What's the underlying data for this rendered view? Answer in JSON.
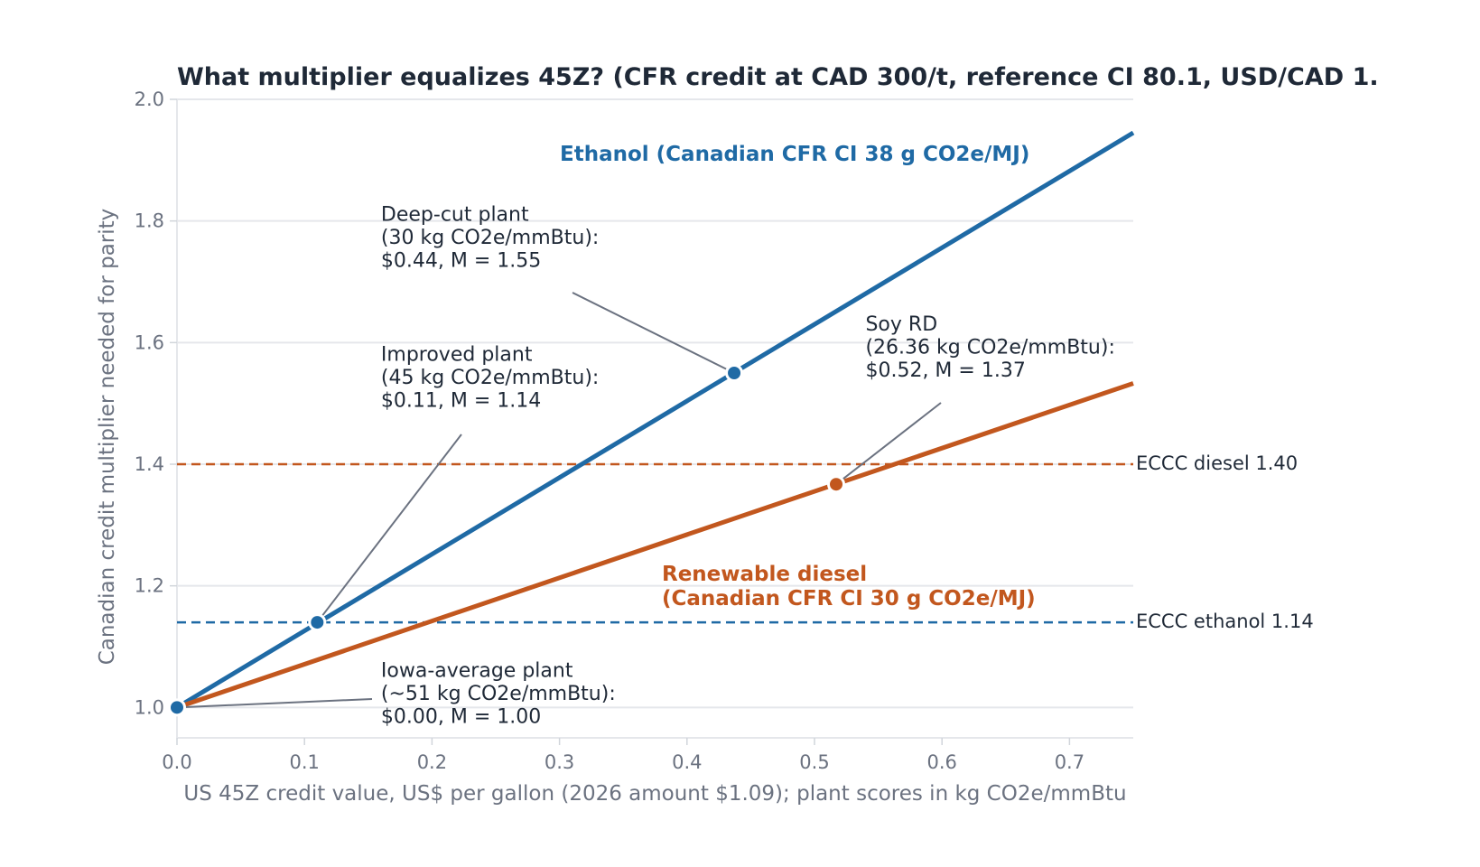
{
  "chart_data": {
    "type": "line",
    "title": "What multiplier equalizes 45Z? (CFR credit at CAD 300/t, reference CI 80.1, USD/CAD 1.",
    "xlabel": "US 45Z credit value, US$ per gallon (2026 amount $1.09); plant scores in kg CO2e/mmBtu",
    "ylabel": "Canadian credit multiplier needed for parity",
    "xlim": [
      0,
      0.75
    ],
    "ylim": [
      0.95,
      2.0
    ],
    "x_ticks": [
      "0.0",
      "0.1",
      "0.2",
      "0.3",
      "0.4",
      "0.5",
      "0.6",
      "0.7"
    ],
    "y_ticks": [
      "1.0",
      "1.2",
      "1.4",
      "1.6",
      "1.8",
      "2.0"
    ],
    "grid": "horizontal",
    "series": [
      {
        "name": "Ethanol (Canadian CFR CI 38 g CO2e/MJ)",
        "color": "#1f6aa5",
        "x": [
          0,
          0.75
        ],
        "y": [
          1.0,
          1.945
        ]
      },
      {
        "name": "Renewable diesel\n(Canadian CFR CI 30 g CO2e/MJ)",
        "color": "#c2571e",
        "x": [
          0,
          0.75
        ],
        "y": [
          1.0,
          1.533
        ]
      }
    ],
    "reference_lines": [
      {
        "label": "ECCC diesel 1.40",
        "y": 1.4,
        "color": "#c2571e"
      },
      {
        "label": "ECCC ethanol 1.14",
        "y": 1.14,
        "color": "#1f6aa5"
      }
    ],
    "points": [
      {
        "series": 0,
        "x": 0.0,
        "y": 1.0,
        "color": "#1f6aa5",
        "label": [
          "Iowa-average plant",
          "(~51 kg CO2e/mmBtu):",
          "$0.00, M = 1.00"
        ],
        "label_at": [
          0.16,
          1.05
        ]
      },
      {
        "series": 0,
        "x": 0.11,
        "y": 1.14,
        "color": "#1f6aa5",
        "label": [
          "Improved plant",
          "(45 kg CO2e/mmBtu):",
          "$0.11, M = 1.14"
        ],
        "label_at": [
          0.16,
          1.57
        ]
      },
      {
        "series": 0,
        "x": 0.437,
        "y": 1.55,
        "color": "#1f6aa5",
        "label": [
          "Deep-cut plant",
          "(30 kg CO2e/mmBtu):",
          "$0.44, M = 1.55"
        ],
        "label_at": [
          0.16,
          1.8
        ]
      },
      {
        "series": 1,
        "x": 0.517,
        "y": 1.367,
        "color": "#c2571e",
        "label": [
          "Soy RD",
          "(26.36 kg CO2e/mmBtu):",
          "$0.52, M = 1.37"
        ],
        "label_at": [
          0.54,
          1.62
        ]
      }
    ]
  }
}
